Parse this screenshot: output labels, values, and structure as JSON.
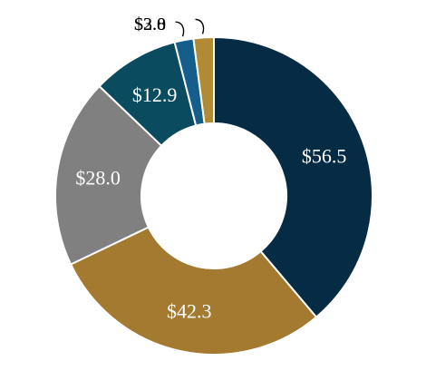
{
  "chart_data": {
    "type": "pie",
    "donut": true,
    "categories": [
      "",
      "",
      "",
      "",
      "",
      ""
    ],
    "values": [
      56.5,
      42.3,
      28.0,
      12.9,
      2.8,
      3.0
    ],
    "labels": [
      "$56.5",
      "$42.3",
      "$28.0",
      "$12.9",
      "$2.8",
      "$3.0"
    ],
    "colors": [
      "#062b45",
      "#a47a31",
      "#808080",
      "#0b4b5f",
      "#155d8b",
      "#b08a35"
    ],
    "label_colors": [
      "#ffffff",
      "#ffffff",
      "#ffffff",
      "#ffffff",
      "#000000",
      "#000000"
    ],
    "title": "",
    "legend": "none"
  }
}
